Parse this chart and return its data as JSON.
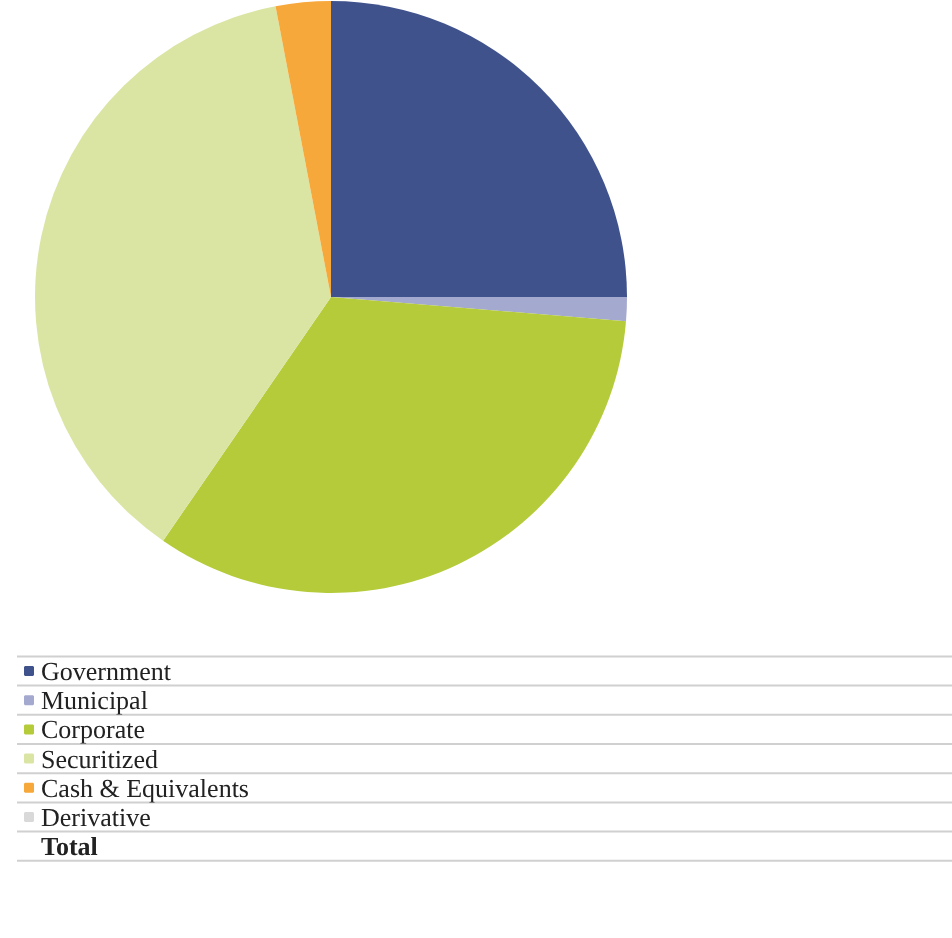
{
  "chart_data": {
    "type": "pie",
    "categories": [
      "Government",
      "Municipal",
      "Corporate",
      "Securitized",
      "Cash & Equivalents",
      "Derivative"
    ],
    "values": [
      25,
      1.3,
      33.3,
      37.4,
      3,
      0
    ],
    "colors": [
      "#3f528c",
      "#a4a9cf",
      "#b5cb3a",
      "#dbe5a3",
      "#f7a83a",
      "#d9d9d9"
    ],
    "legend": "bottom",
    "annotations": [
      "Total"
    ]
  }
}
